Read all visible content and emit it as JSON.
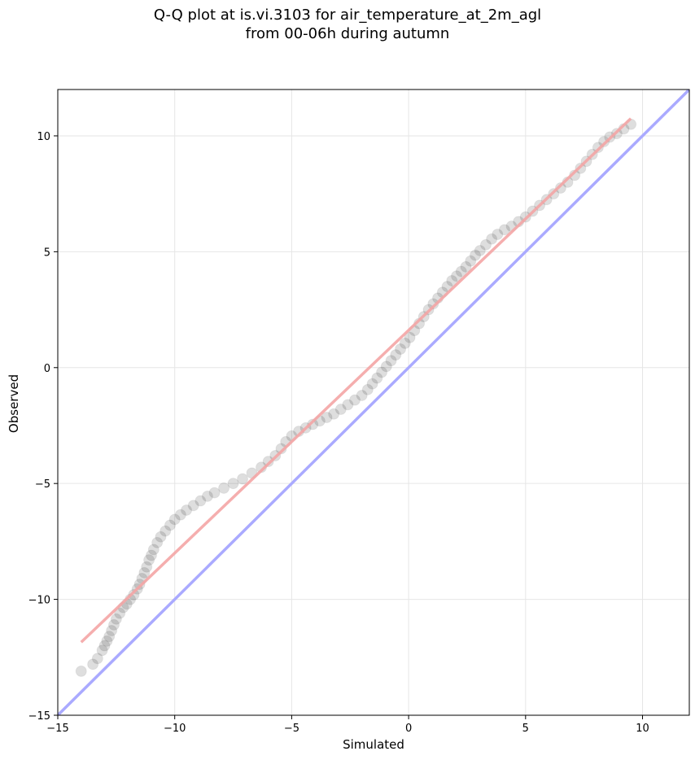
{
  "title_line1": "Q-Q plot at is.vi.3103 for air_temperature_at_2m_agl",
  "title_line2": "from 00-06h during autumn",
  "chart_data": {
    "type": "scatter",
    "xlabel": "Simulated",
    "ylabel": "Observed",
    "xlim": [
      -15,
      12
    ],
    "ylim": [
      -15,
      12
    ],
    "xticks": [
      -15,
      -10,
      -5,
      0,
      5,
      10
    ],
    "yticks": [
      -15,
      -10,
      -5,
      0,
      5,
      10
    ],
    "xtick_labels": [
      "−15",
      "−10",
      "−5",
      "0",
      "5",
      "10"
    ],
    "ytick_labels": [
      "−15",
      "−10",
      "−5",
      "0",
      "5",
      "10"
    ],
    "grid": true,
    "reference_line": {
      "color": "#aaaaff",
      "x": [
        -15,
        12
      ],
      "y": [
        -15,
        12
      ]
    },
    "fit_line": {
      "color": "#f4a6a6",
      "x": [
        -14,
        9.5
      ],
      "y": [
        -11.85,
        10.75
      ]
    },
    "point_color": "#000000",
    "points": [
      [
        -14.0,
        -13.1
      ],
      [
        -13.5,
        -12.8
      ],
      [
        -13.3,
        -12.55
      ],
      [
        -13.1,
        -12.2
      ],
      [
        -13.0,
        -12.0
      ],
      [
        -12.9,
        -11.8
      ],
      [
        -12.8,
        -11.6
      ],
      [
        -12.7,
        -11.35
      ],
      [
        -12.6,
        -11.1
      ],
      [
        -12.5,
        -10.85
      ],
      [
        -12.35,
        -10.6
      ],
      [
        -12.2,
        -10.35
      ],
      [
        -12.05,
        -10.2
      ],
      [
        -11.9,
        -10.0
      ],
      [
        -11.75,
        -9.8
      ],
      [
        -11.6,
        -9.55
      ],
      [
        -11.5,
        -9.35
      ],
      [
        -11.4,
        -9.1
      ],
      [
        -11.3,
        -8.85
      ],
      [
        -11.2,
        -8.6
      ],
      [
        -11.1,
        -8.3
      ],
      [
        -11.0,
        -8.1
      ],
      [
        -10.9,
        -7.85
      ],
      [
        -10.75,
        -7.55
      ],
      [
        -10.6,
        -7.3
      ],
      [
        -10.4,
        -7.05
      ],
      [
        -10.2,
        -6.8
      ],
      [
        -10.0,
        -6.55
      ],
      [
        -9.75,
        -6.35
      ],
      [
        -9.5,
        -6.15
      ],
      [
        -9.2,
        -5.95
      ],
      [
        -8.9,
        -5.75
      ],
      [
        -8.6,
        -5.55
      ],
      [
        -8.3,
        -5.4
      ],
      [
        -7.9,
        -5.2
      ],
      [
        -7.5,
        -5.0
      ],
      [
        -7.1,
        -4.8
      ],
      [
        -6.7,
        -4.55
      ],
      [
        -6.3,
        -4.3
      ],
      [
        -6.0,
        -4.05
      ],
      [
        -5.7,
        -3.8
      ],
      [
        -5.45,
        -3.5
      ],
      [
        -5.25,
        -3.2
      ],
      [
        -5.0,
        -2.95
      ],
      [
        -4.7,
        -2.75
      ],
      [
        -4.4,
        -2.6
      ],
      [
        -4.1,
        -2.45
      ],
      [
        -3.8,
        -2.3
      ],
      [
        -3.5,
        -2.15
      ],
      [
        -3.2,
        -2.0
      ],
      [
        -2.9,
        -1.8
      ],
      [
        -2.6,
        -1.6
      ],
      [
        -2.3,
        -1.4
      ],
      [
        -2.0,
        -1.2
      ],
      [
        -1.75,
        -0.95
      ],
      [
        -1.55,
        -0.7
      ],
      [
        -1.35,
        -0.45
      ],
      [
        -1.15,
        -0.2
      ],
      [
        -0.95,
        0.05
      ],
      [
        -0.75,
        0.3
      ],
      [
        -0.55,
        0.55
      ],
      [
        -0.35,
        0.8
      ],
      [
        -0.15,
        1.05
      ],
      [
        0.05,
        1.3
      ],
      [
        0.25,
        1.6
      ],
      [
        0.45,
        1.9
      ],
      [
        0.65,
        2.2
      ],
      [
        0.85,
        2.5
      ],
      [
        1.05,
        2.75
      ],
      [
        1.25,
        3.0
      ],
      [
        1.45,
        3.25
      ],
      [
        1.65,
        3.5
      ],
      [
        1.85,
        3.75
      ],
      [
        2.05,
        3.95
      ],
      [
        2.25,
        4.15
      ],
      [
        2.45,
        4.35
      ],
      [
        2.65,
        4.6
      ],
      [
        2.85,
        4.85
      ],
      [
        3.05,
        5.05
      ],
      [
        3.3,
        5.3
      ],
      [
        3.55,
        5.55
      ],
      [
        3.8,
        5.75
      ],
      [
        4.1,
        5.95
      ],
      [
        4.4,
        6.1
      ],
      [
        4.7,
        6.3
      ],
      [
        5.0,
        6.5
      ],
      [
        5.3,
        6.75
      ],
      [
        5.6,
        7.0
      ],
      [
        5.9,
        7.25
      ],
      [
        6.2,
        7.5
      ],
      [
        6.5,
        7.75
      ],
      [
        6.8,
        8.0
      ],
      [
        7.1,
        8.3
      ],
      [
        7.35,
        8.6
      ],
      [
        7.6,
        8.9
      ],
      [
        7.85,
        9.2
      ],
      [
        8.1,
        9.5
      ],
      [
        8.35,
        9.75
      ],
      [
        8.6,
        9.95
      ],
      [
        8.9,
        10.1
      ],
      [
        9.2,
        10.3
      ],
      [
        9.5,
        10.5
      ]
    ]
  }
}
